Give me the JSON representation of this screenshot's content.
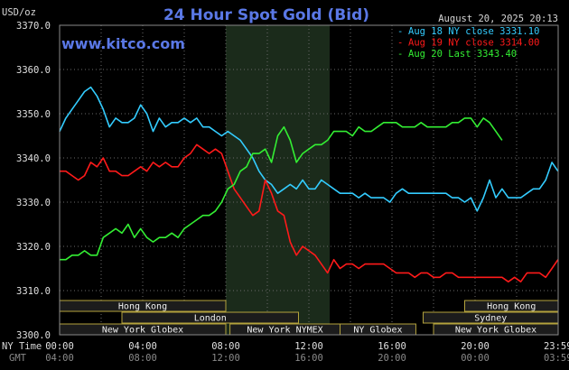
{
  "header": {
    "title": "24 Hour Spot Gold (Bid)",
    "datetime": "August 20, 2025 20:13",
    "website": "www.kitco.com",
    "currency_unit": "USD/oz"
  },
  "colors": {
    "background": "#000000",
    "aug18": "#33ccff",
    "aug19": "#ff1a1a",
    "aug20": "#33ee33",
    "grid": "#6a6a6a",
    "session_fill": "#1c1c1c",
    "session_border": "#b3a23c",
    "highlight_band": "#1b2b1b",
    "title": "#5a78e6"
  },
  "legend": [
    {
      "text": "Aug 18 NY close 3331.10",
      "series": "aug18",
      "color": "#33ccff"
    },
    {
      "text": "Aug 19 NY close 3314.00",
      "series": "aug19",
      "color": "#ff1a1a"
    },
    {
      "text": "Aug 20 Last 3343.40",
      "series": "aug20",
      "color": "#33ee33"
    }
  ],
  "axis": {
    "ny_time_label": "NY Time",
    "gmt_label": "GMT",
    "ny_ticks": [
      "00:00",
      "04:00",
      "08:00",
      "12:00",
      "16:00",
      "20:00",
      "23:59"
    ],
    "gmt_ticks": [
      "04:00",
      "08:00",
      "12:00",
      "16:00",
      "20:00",
      "00:00",
      "03:59"
    ],
    "y_ticks": [
      "3300.0",
      "3310.0",
      "3320.0",
      "3330.0",
      "3340.0",
      "3350.0",
      "3360.0",
      "3370.0"
    ]
  },
  "sessions": [
    {
      "name": "Hong Kong",
      "row": 0,
      "start": 0,
      "end": 8
    },
    {
      "name": "Hong Kong",
      "row": 0,
      "start": 19.5,
      "end": 24
    },
    {
      "name": "London",
      "row": 1,
      "start": 3,
      "end": 11.5
    },
    {
      "name": "Sydney",
      "row": 1,
      "start": 17.5,
      "end": 24
    },
    {
      "name": "New York Globex",
      "row": 2,
      "start": 0,
      "end": 8
    },
    {
      "name": "New York NYMEX",
      "row": 2,
      "start": 8.2,
      "end": 13.5
    },
    {
      "name": "NY Globex",
      "row": 2,
      "start": 13.5,
      "end": 17.15
    },
    {
      "name": "New York Globex",
      "row": 2,
      "start": 18,
      "end": 24
    }
  ],
  "chart_data": {
    "type": "line",
    "xlabel": "NY Time",
    "ylabel": "USD/oz",
    "xlim": [
      0,
      24
    ],
    "ylim": [
      3300,
      3370
    ],
    "grid": true,
    "legend_position": "top-right",
    "highlight_band": [
      8,
      13
    ],
    "series": [
      {
        "name": "Aug 18 NY close 3331.10",
        "key": "aug18",
        "x": [
          0,
          0.3,
          0.6,
          0.9,
          1.2,
          1.5,
          1.8,
          2.1,
          2.4,
          2.7,
          3.0,
          3.3,
          3.6,
          3.9,
          4.2,
          4.5,
          4.8,
          5.1,
          5.4,
          5.7,
          6.0,
          6.3,
          6.6,
          6.9,
          7.2,
          7.5,
          7.8,
          8.1,
          8.4,
          8.7,
          9.0,
          9.3,
          9.6,
          9.9,
          10.2,
          10.5,
          10.8,
          11.1,
          11.4,
          11.7,
          12.0,
          12.3,
          12.6,
          12.9,
          13.2,
          13.5,
          13.8,
          14.1,
          14.4,
          14.7,
          15.0,
          15.3,
          15.6,
          15.9,
          16.2,
          16.5,
          16.8,
          17.1,
          17.4,
          17.7,
          18.0,
          18.3,
          18.6,
          18.9,
          19.2,
          19.5,
          19.8,
          20.1,
          20.4,
          20.7,
          21.0,
          21.3,
          21.6,
          21.9,
          22.2,
          22.5,
          22.8,
          23.1,
          23.4,
          23.7,
          23.99
        ],
        "values": [
          3346,
          3349,
          3351,
          3353,
          3355,
          3356,
          3354,
          3351,
          3347,
          3349,
          3348,
          3348,
          3349,
          3352,
          3350,
          3346,
          3349,
          3347,
          3348,
          3348,
          3349,
          3348,
          3349,
          3347,
          3347,
          3346,
          3345,
          3346,
          3345,
          3344,
          3342,
          3340,
          3337,
          3335,
          3334,
          3332,
          3333,
          3334,
          3333,
          3335,
          3333,
          3333,
          3335,
          3334,
          3333,
          3332,
          3332,
          3332,
          3331,
          3332,
          3331,
          3331,
          3331,
          3330,
          3332,
          3333,
          3332,
          3332,
          3332,
          3332,
          3332,
          3332,
          3332,
          3331,
          3331,
          3330,
          3331,
          3328,
          3331,
          3335,
          3331,
          3333,
          3331,
          3331,
          3331,
          3332,
          3333,
          3333,
          3335,
          3339,
          3337
        ]
      },
      {
        "name": "Aug 19 NY close 3314.00",
        "key": "aug19",
        "x": [
          0,
          0.3,
          0.6,
          0.9,
          1.2,
          1.5,
          1.8,
          2.1,
          2.4,
          2.7,
          3.0,
          3.3,
          3.6,
          3.9,
          4.2,
          4.5,
          4.8,
          5.1,
          5.4,
          5.7,
          6.0,
          6.3,
          6.6,
          6.9,
          7.2,
          7.5,
          7.8,
          8.1,
          8.4,
          8.7,
          9.0,
          9.3,
          9.6,
          9.9,
          10.2,
          10.5,
          10.8,
          11.1,
          11.4,
          11.7,
          12.0,
          12.3,
          12.6,
          12.9,
          13.2,
          13.5,
          13.8,
          14.1,
          14.4,
          14.7,
          15.0,
          15.3,
          15.6,
          15.9,
          16.2,
          16.5,
          16.8,
          17.1,
          17.4,
          17.7,
          18.0,
          18.3,
          18.6,
          18.9,
          19.2,
          19.5,
          19.8,
          20.1,
          20.4,
          20.7,
          21.0,
          21.3,
          21.6,
          21.9,
          22.2,
          22.5,
          22.8,
          23.1,
          23.4,
          23.7,
          23.99
        ],
        "values": [
          3337,
          3337,
          3336,
          3335,
          3336,
          3339,
          3338,
          3340,
          3337,
          3337,
          3336,
          3336,
          3337,
          3338,
          3337,
          3339,
          3338,
          3339,
          3338,
          3338,
          3340,
          3341,
          3343,
          3342,
          3341,
          3342,
          3341,
          3337,
          3333,
          3331,
          3329,
          3327,
          3328,
          3335,
          3332,
          3328,
          3327,
          3321,
          3318,
          3320,
          3319,
          3318,
          3316,
          3314,
          3317,
          3315,
          3316,
          3316,
          3315,
          3316,
          3316,
          3316,
          3316,
          3315,
          3314,
          3314,
          3314,
          3313,
          3314,
          3314,
          3313,
          3313,
          3314,
          3314,
          3313,
          3313,
          3313,
          3313,
          3313,
          3313,
          3313,
          3313,
          3312,
          3313,
          3312,
          3314,
          3314,
          3314,
          3313,
          3315,
          3317
        ]
      },
      {
        "name": "Aug 20 Last 3343.40",
        "key": "aug20",
        "x": [
          0,
          0.3,
          0.6,
          0.9,
          1.2,
          1.5,
          1.8,
          2.1,
          2.4,
          2.7,
          3.0,
          3.3,
          3.6,
          3.9,
          4.2,
          4.5,
          4.8,
          5.1,
          5.4,
          5.7,
          6.0,
          6.3,
          6.6,
          6.9,
          7.2,
          7.5,
          7.8,
          8.1,
          8.4,
          8.7,
          9.0,
          9.3,
          9.6,
          9.9,
          10.2,
          10.5,
          10.8,
          11.1,
          11.4,
          11.7,
          12.0,
          12.3,
          12.6,
          12.9,
          13.2,
          13.5,
          13.8,
          14.1,
          14.4,
          14.7,
          15.0,
          15.3,
          15.6,
          15.9,
          16.2,
          16.5,
          16.8,
          17.1,
          17.4,
          17.7,
          18.0,
          18.3,
          18.6,
          18.9,
          19.2,
          19.5,
          19.8,
          20.1,
          20.4,
          20.7,
          21.0,
          21.3
        ],
        "values": [
          3317,
          3317,
          3318,
          3318,
          3319,
          3318,
          3318,
          3322,
          3323,
          3324,
          3323,
          3325,
          3322,
          3324,
          3322,
          3321,
          3322,
          3322,
          3323,
          3322,
          3324,
          3325,
          3326,
          3327,
          3327,
          3328,
          3330,
          3333,
          3334,
          3337,
          3338,
          3341,
          3341,
          3342,
          3339,
          3345,
          3347,
          3344,
          3339,
          3341,
          3342,
          3343,
          3343,
          3344,
          3346,
          3346,
          3346,
          3345,
          3347,
          3346,
          3346,
          3347,
          3348,
          3348,
          3348,
          3347,
          3347,
          3347,
          3348,
          3347,
          3347,
          3347,
          3347,
          3348,
          3348,
          3349,
          3349,
          3347,
          3349,
          3348,
          3346,
          3344
        ]
      }
    ]
  }
}
